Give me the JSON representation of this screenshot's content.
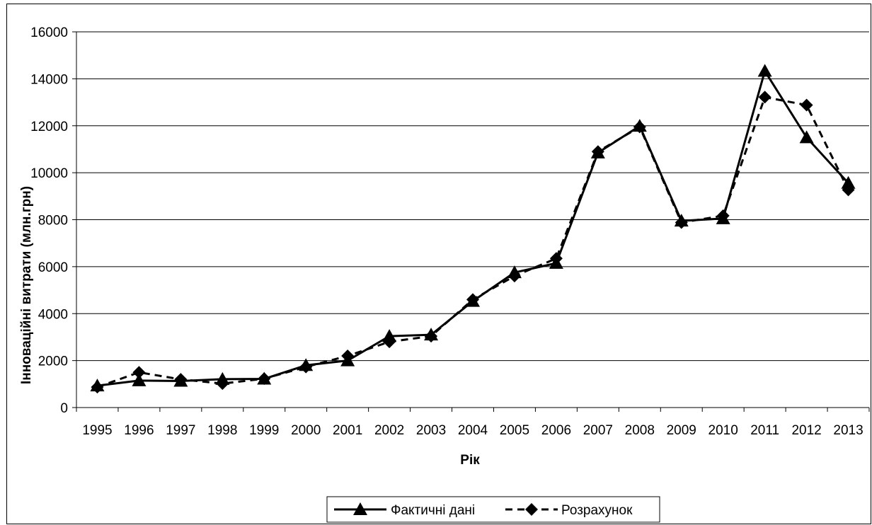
{
  "chart_data": {
    "type": "line",
    "xlabel": "Рік",
    "ylabel": "Інноваційні витрати (млн.грн)",
    "categories": [
      "1995",
      "1996",
      "1997",
      "1998",
      "1999",
      "2000",
      "2001",
      "2002",
      "2003",
      "2004",
      "2005",
      "2006",
      "2007",
      "2008",
      "2009",
      "2010",
      "2011",
      "2012",
      "2013"
    ],
    "ylim": [
      0,
      16000
    ],
    "yticks": [
      "0",
      "2000",
      "4000",
      "6000",
      "8000",
      "10000",
      "12000",
      "14000",
      "16000"
    ],
    "grid": "horizontal",
    "legend_position": "bottom",
    "series": [
      {
        "name": "Фактичні дані",
        "style": "solid",
        "marker": "triangle",
        "color": "#000000",
        "values": [
          930,
          1150,
          1130,
          1210,
          1220,
          1800,
          2000,
          3040,
          3100,
          4530,
          5750,
          6150,
          10850,
          11990,
          7950,
          8050,
          14330,
          11500,
          9560
        ]
      },
      {
        "name": "Розрахунок",
        "style": "dashed",
        "marker": "diamond",
        "color": "#000000",
        "values": [
          870,
          1500,
          1200,
          1020,
          1230,
          1730,
          2200,
          2800,
          3040,
          4600,
          5600,
          6350,
          10900,
          11950,
          7880,
          8170,
          13220,
          12880,
          9270
        ]
      }
    ]
  }
}
